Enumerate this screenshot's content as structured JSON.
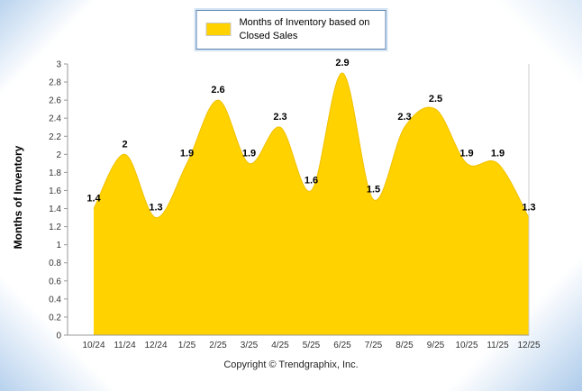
{
  "legend": {
    "label": "Months of Inventory based on Closed Sales"
  },
  "footer": {
    "copyright": "Copyright © Trendgraphix, Inc."
  },
  "chart_data": {
    "type": "area",
    "title": "",
    "xlabel": "",
    "ylabel": "Months of Inventory",
    "ylim": [
      0,
      3
    ],
    "y_tick_step": 0.2,
    "y_tick_labels": [
      "0",
      "0.2",
      "0.4",
      "0.6",
      "0.8",
      "1",
      "1.2",
      "1.4",
      "1.6",
      "1.8",
      "2",
      "2.2",
      "2.4",
      "2.6",
      "2.8",
      "3"
    ],
    "categories": [
      "10/24",
      "11/24",
      "12/24",
      "1/25",
      "2/25",
      "3/25",
      "4/25",
      "5/25",
      "6/25",
      "7/25",
      "8/25",
      "9/25",
      "10/25",
      "11/25",
      "12/25"
    ],
    "series": [
      {
        "name": "Months of Inventory based on Closed Sales",
        "values": [
          1.4,
          2,
          1.3,
          1.9,
          2.6,
          1.9,
          2.3,
          1.6,
          2.9,
          1.5,
          2.3,
          2.5,
          1.9,
          1.9,
          1.3
        ],
        "value_labels": [
          "1.4",
          "2",
          "1.3",
          "1.9",
          "2.6",
          "1.9",
          "2.3",
          "1.6",
          "2.9",
          "1.5",
          "2.3",
          "2.5",
          "1.9",
          "1.9",
          "1.3"
        ]
      }
    ],
    "legend_position": "top",
    "grid": "off",
    "colors": {
      "area_fill": "#FFD200",
      "area_stroke": "#F2C100",
      "axis": "#999999",
      "plot_border": "#cccccc",
      "tick_text": "#333333",
      "value_label": "#000000"
    }
  }
}
